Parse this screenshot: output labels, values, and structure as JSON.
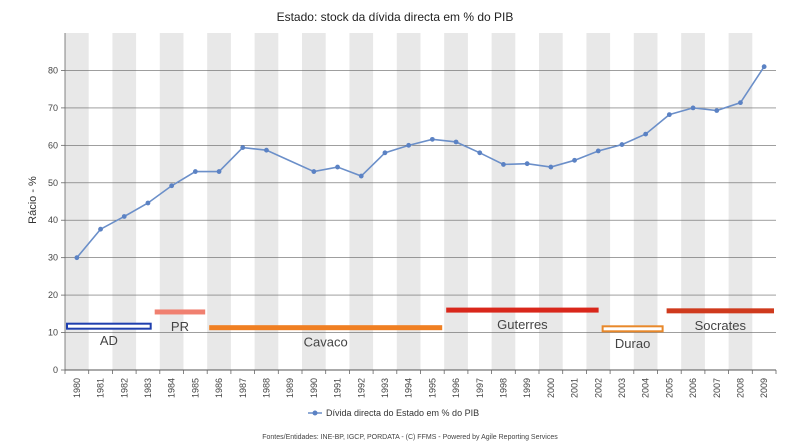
{
  "chart_data": {
    "type": "line",
    "title": "Estado: stock da dívida directa em % do PIB",
    "ylabel": "Rácio - %",
    "xlabel": "",
    "ylim": [
      0,
      90
    ],
    "yticks": [
      0,
      10,
      20,
      30,
      40,
      50,
      60,
      70,
      80
    ],
    "grid": true,
    "legend_position": "bottom",
    "x": [
      "1980",
      "1981",
      "1982",
      "1983",
      "1984",
      "1985",
      "1986",
      "1987",
      "1988",
      "1989",
      "1990",
      "1991",
      "1992",
      "1993",
      "1994",
      "1995",
      "1996",
      "1997",
      "1998",
      "1999",
      "2000",
      "2001",
      "2002",
      "2003",
      "2004",
      "2005",
      "2006",
      "2007",
      "2008",
      "2009"
    ],
    "series": [
      {
        "name": "Dívida directa do Estado em % do PIB",
        "color": "#6b8fc9",
        "values": [
          30.0,
          37.6,
          41.0,
          44.6,
          49.2,
          53.0,
          53.0,
          59.4,
          58.7,
          null,
          53.0,
          54.2,
          51.8,
          58.0,
          60.0,
          61.6,
          60.9,
          58.0,
          54.9,
          55.1,
          54.2,
          56.0,
          58.5,
          60.2,
          63.0,
          68.2,
          70.0,
          69.3,
          71.4,
          81.0
        ]
      }
    ],
    "governments": [
      {
        "label": "AD",
        "start": 1980,
        "end": 1983.7,
        "y": 11.7,
        "color": "#1f3fae",
        "style": "outline"
      },
      {
        "label": "PR",
        "start": 1983.7,
        "end": 1986.0,
        "y": 15.5,
        "color": "#f08070",
        "style": "solid"
      },
      {
        "label": "Cavaco",
        "start": 1986.0,
        "end": 1996.0,
        "y": 11.3,
        "color": "#f07f22",
        "style": "solid"
      },
      {
        "label": "Guterres",
        "start": 1996.0,
        "end": 2002.6,
        "y": 16.0,
        "color": "#d9271b",
        "style": "solid"
      },
      {
        "label": "Durao",
        "start": 2002.6,
        "end": 2005.3,
        "y": 11.0,
        "color": "#e8882a",
        "style": "outline"
      },
      {
        "label": "Socrates",
        "start": 2005.3,
        "end": 2010.0,
        "y": 15.8,
        "color": "#cf3a1d",
        "style": "solid"
      }
    ]
  },
  "footer": {
    "source": "Fontes/Entidades: INE-BP, IGCP, PORDATA - (C) FFMS - Powered by Agile Reporting Services"
  }
}
